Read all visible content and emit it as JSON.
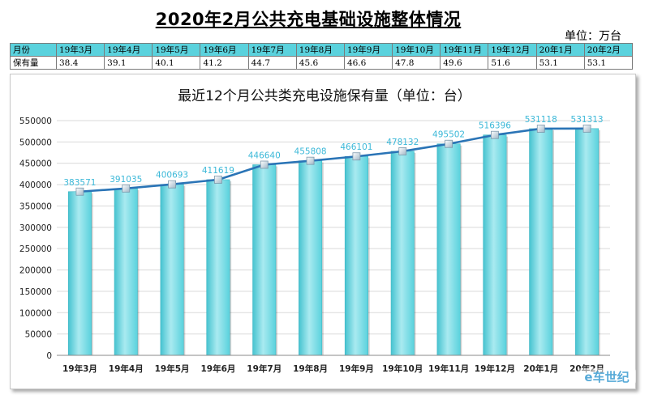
{
  "header": {
    "title": "2020年2月公共充电基础设施整体情况",
    "unit": "单位：万台"
  },
  "summary_table": {
    "header_label": "月份",
    "row_label": "保有量",
    "months": [
      "19年3月",
      "19年4月",
      "19年5月",
      "19年6月",
      "19年7月",
      "19年8月",
      "19年9月",
      "19年10月",
      "19年11月",
      "19年12月",
      "20年1月",
      "20年2月"
    ],
    "values": [
      "38.4",
      "39.1",
      "40.1",
      "41.2",
      "44.7",
      "45.6",
      "46.6",
      "47.8",
      "49.6",
      "51.6",
      "53.1",
      "53.1"
    ]
  },
  "chart_data": {
    "type": "bar",
    "title": "最近12个月公共类充电设施保有量（单位：台）",
    "xlabel": "",
    "ylabel": "",
    "categories": [
      "19年3月",
      "19年4月",
      "19年5月",
      "19年6月",
      "19年7月",
      "19年8月",
      "19年9月",
      "19年10月",
      "19年11月",
      "19年12月",
      "20年1月",
      "20年2月"
    ],
    "series": [
      {
        "type": "bar",
        "values": [
          383571,
          391035,
          400693,
          411619,
          446640,
          455808,
          466101,
          478132,
          495502,
          516396,
          531118,
          531313
        ]
      },
      {
        "type": "line",
        "values": [
          383571,
          391035,
          400693,
          411619,
          446640,
          455808,
          466101,
          478132,
          495502,
          516396,
          531118,
          531313
        ]
      }
    ],
    "ylim": [
      0,
      550000
    ],
    "yticks": [
      0,
      50000,
      100000,
      150000,
      200000,
      250000,
      300000,
      350000,
      400000,
      450000,
      500000,
      550000
    ],
    "grid": true,
    "data_labels": [
      "383571",
      "391035",
      "400693",
      "411619",
      "446640",
      "455808",
      "466101",
      "478132",
      "495502",
      "516396",
      "531118",
      "531313"
    ],
    "colors": {
      "bar": "#5ad2dd",
      "bar_light": "#a9eaf0",
      "line": "#2a74b6",
      "marker": "#d9e4ec",
      "label": "#3bb8d8",
      "grid": "#d9d9d9"
    }
  },
  "watermark": {
    "text": "e车世纪"
  }
}
